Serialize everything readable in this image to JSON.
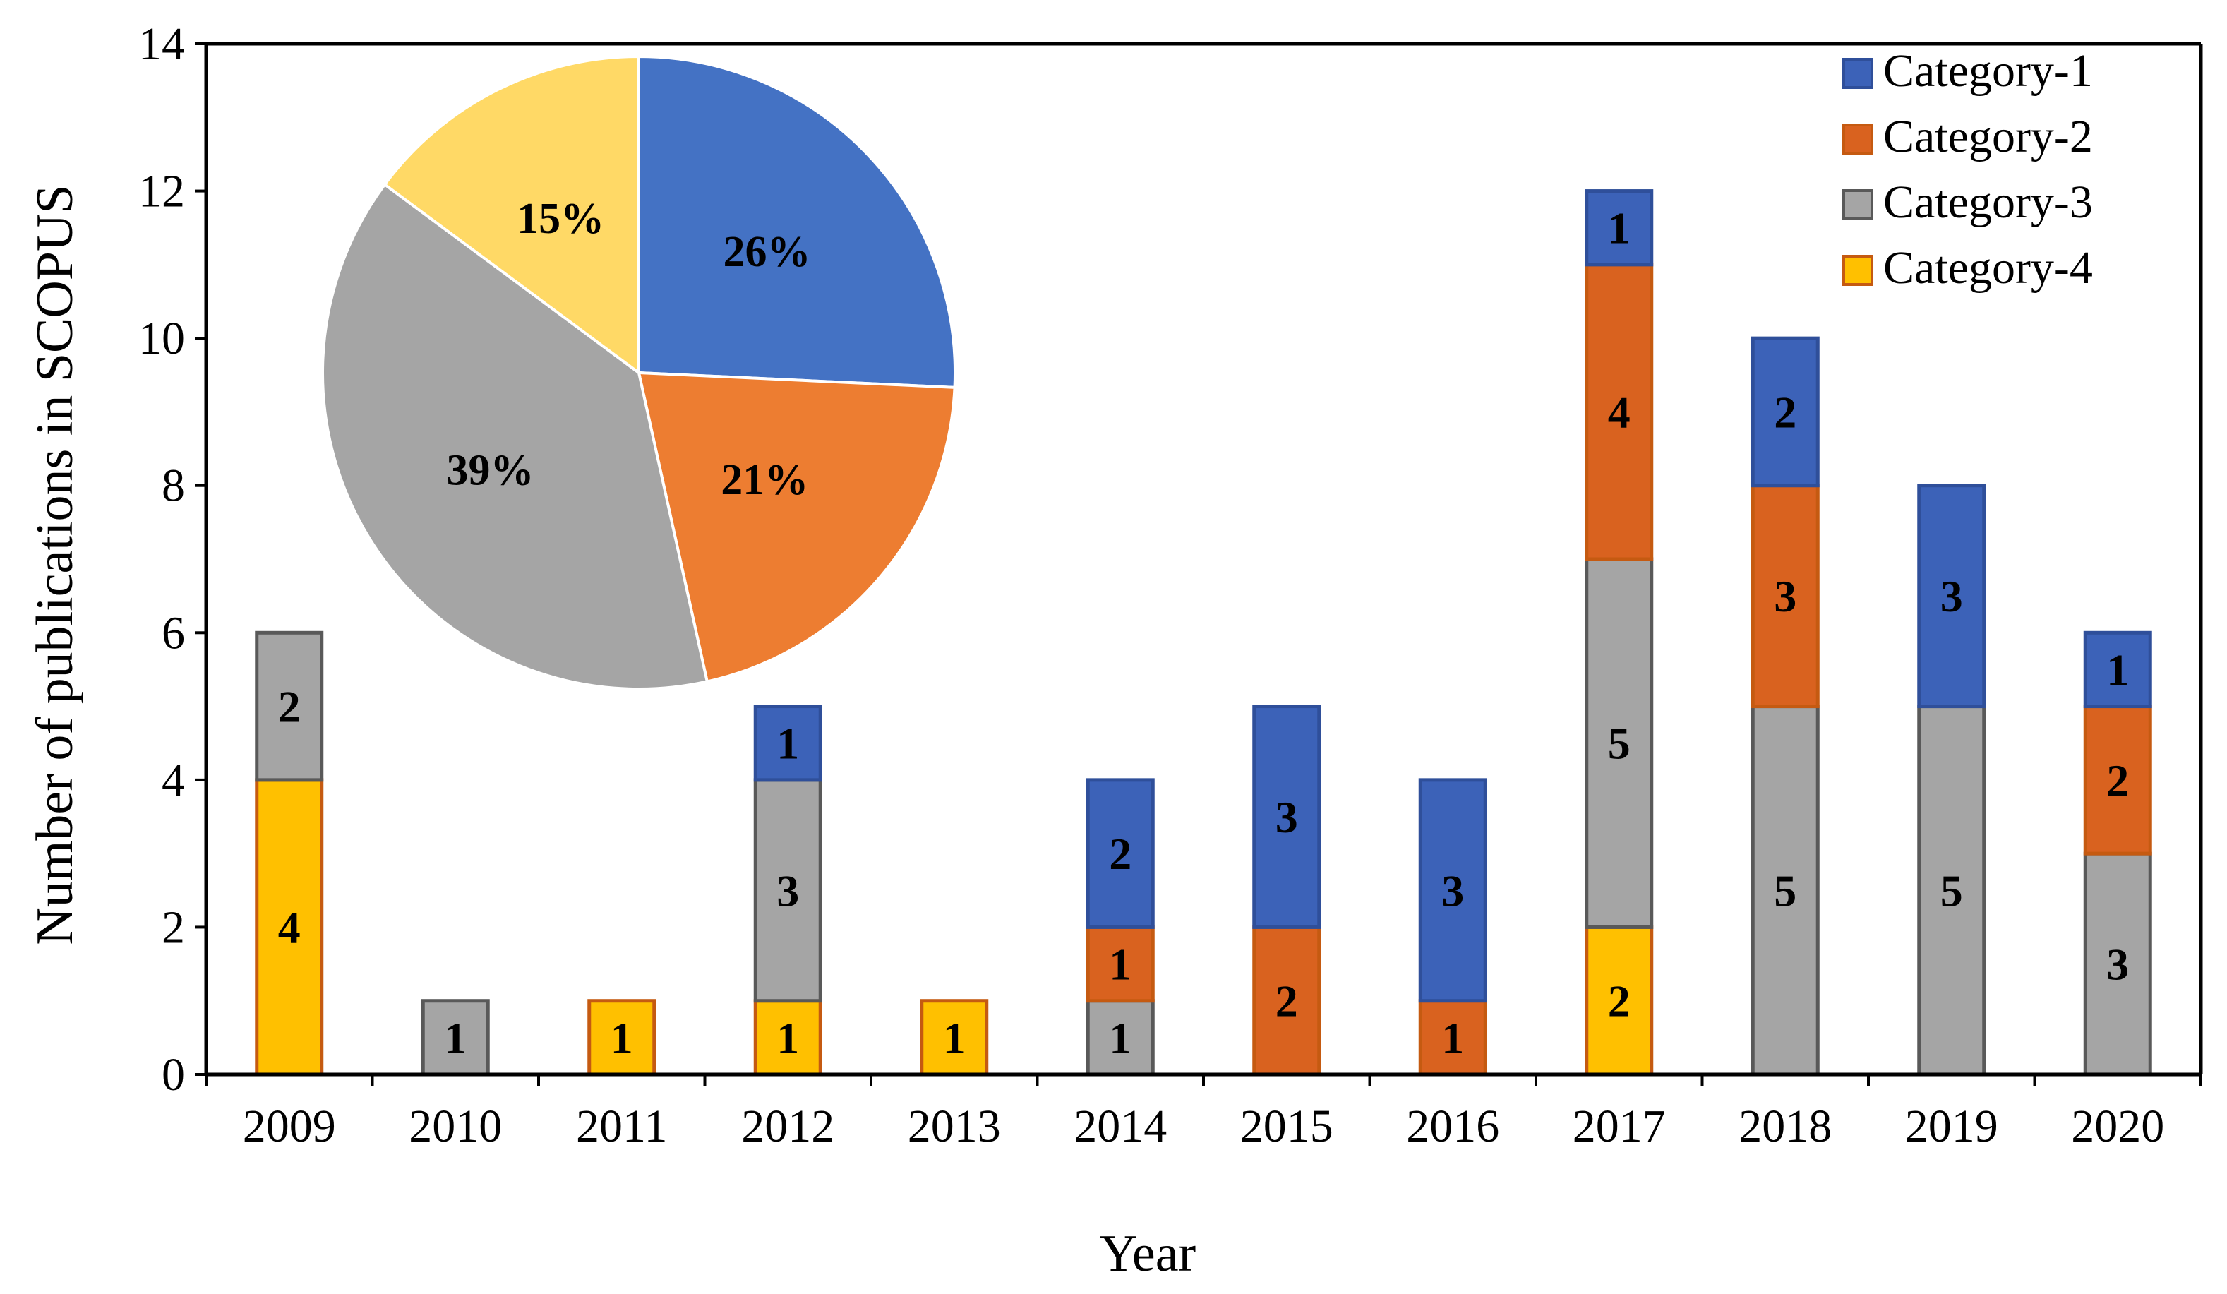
{
  "chart_data": [
    {
      "type": "bar",
      "stacked": true,
      "xlabel": "Year",
      "ylabel": "Number of publications in SCOPUS",
      "ylim": [
        0,
        14
      ],
      "yticks": [
        0,
        2,
        4,
        6,
        8,
        10,
        12,
        14
      ],
      "categories": [
        "2009",
        "2010",
        "2011",
        "2012",
        "2013",
        "2014",
        "2015",
        "2016",
        "2017",
        "2018",
        "2019",
        "2020"
      ],
      "series": [
        {
          "name": "Category-4",
          "color": "#FFC000",
          "border": "#C55A11",
          "values": [
            4,
            0,
            1,
            1,
            1,
            0,
            0,
            0,
            2,
            0,
            0,
            0
          ]
        },
        {
          "name": "Category-3",
          "color": "#A5A5A5",
          "border": "#595959",
          "values": [
            2,
            1,
            0,
            3,
            0,
            1,
            0,
            0,
            5,
            5,
            5,
            3
          ]
        },
        {
          "name": "Category-2",
          "color": "#D9621F",
          "border": "#C55A11",
          "values": [
            0,
            0,
            0,
            0,
            0,
            1,
            2,
            1,
            4,
            3,
            0,
            2
          ]
        },
        {
          "name": "Category-1",
          "color": "#3C62B8",
          "border": "#2F4F9A",
          "values": [
            0,
            0,
            0,
            1,
            0,
            2,
            3,
            3,
            1,
            2,
            3,
            1
          ]
        }
      ],
      "legend": {
        "position": "top-right",
        "order": [
          "Category-1",
          "Category-2",
          "Category-3",
          "Category-4"
        ]
      },
      "grid": false
    },
    {
      "type": "pie",
      "slices": [
        {
          "label": "26%",
          "value": 26,
          "color": "#4472C4"
        },
        {
          "label": "21%",
          "value": 21,
          "color": "#ED7D31"
        },
        {
          "label": "39%",
          "value": 39,
          "color": "#A5A5A5"
        },
        {
          "label": "15%",
          "value": 15,
          "color": "#FFD966"
        }
      ]
    }
  ]
}
